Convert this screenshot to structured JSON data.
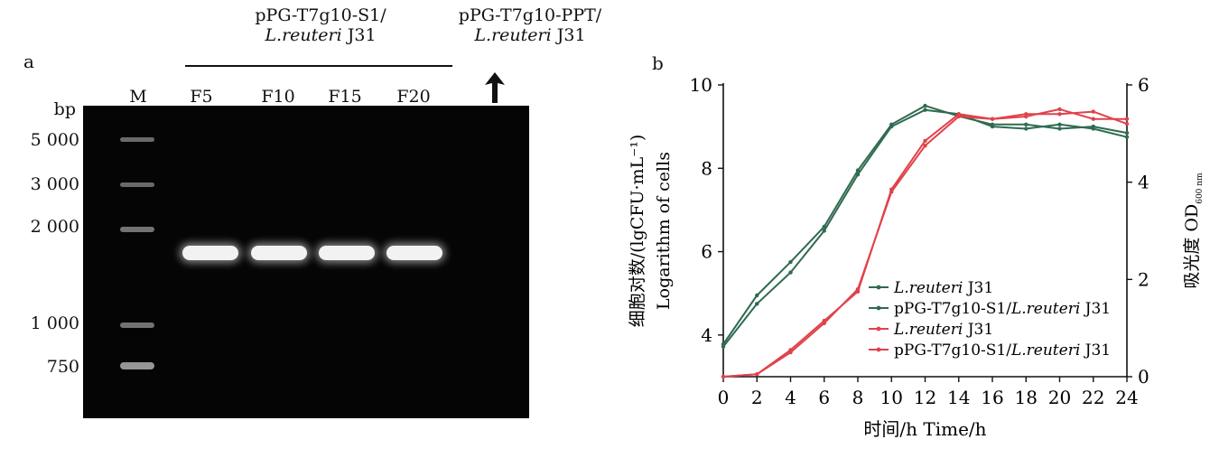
{
  "panel_a": {
    "label": "a",
    "group1": {
      "line1": "pPG-T7g10-S1/",
      "italic": "L.reuteri",
      "strain": " J31"
    },
    "group2": {
      "line1": "pPG-T7g10-PPT/",
      "italic": "L.reuteri",
      "strain": " J31"
    },
    "arrow_icon": "up-arrow",
    "lanes": [
      "M",
      "F5",
      "F10",
      "F15",
      "F20"
    ],
    "bp_label": "bp",
    "markers": [
      "5 000",
      "3 000",
      "2 000",
      "1 000",
      "750"
    ],
    "marker_bp": [
      5000,
      3000,
      2000,
      1000,
      750
    ],
    "sample_band_bp": 1700
  },
  "chart_data": {
    "type": "line",
    "panel_label": "b",
    "xlabel": "时间/h Time/h",
    "ylabel_left": [
      "细胞对数/(lgCFU·mL⁻¹)",
      "Logarithm of cells"
    ],
    "ylabel_right": {
      "main": "吸光度 OD",
      "sub": "600 nm"
    },
    "xlim": [
      0,
      24
    ],
    "ylim_left": [
      3,
      10
    ],
    "ylim_right": [
      0,
      6
    ],
    "xticks": [
      0,
      2,
      4,
      6,
      8,
      10,
      12,
      14,
      16,
      18,
      20,
      22,
      24
    ],
    "yticks_left": [
      4,
      6,
      8,
      10
    ],
    "yticks_right": [
      0,
      2,
      4,
      6
    ],
    "x": [
      0,
      2,
      4,
      6,
      8,
      10,
      12,
      14,
      16,
      18,
      20,
      22,
      24
    ],
    "series": [
      {
        "name": "L.reuteri J31",
        "name_italic": "L.reuteri",
        "name_rest": " J31",
        "axis": "left",
        "color": "#2f6b4f",
        "values": [
          3.78,
          4.95,
          5.75,
          6.6,
          7.95,
          9.05,
          9.5,
          9.25,
          9.05,
          9.05,
          8.95,
          9.0,
          8.85
        ]
      },
      {
        "name": "pPG-T7g10-S1/L.reuteri J31",
        "name_prefix": "pPG-T7g10-S1/",
        "name_italic": "L.reuteri",
        "name_rest": " J31",
        "axis": "left",
        "color": "#2f6b4f",
        "values": [
          3.72,
          4.75,
          5.5,
          6.5,
          7.85,
          9.0,
          9.4,
          9.3,
          9.0,
          8.95,
          9.05,
          8.95,
          8.75
        ]
      },
      {
        "name": "L.reuteri J31",
        "name_italic": "L.reuteri",
        "name_rest": " J31",
        "axis": "right",
        "color": "#e0424b",
        "values": [
          0.0,
          0.05,
          0.55,
          1.15,
          1.75,
          3.85,
          4.85,
          5.4,
          5.3,
          5.35,
          5.5,
          5.3,
          5.3
        ]
      },
      {
        "name": "pPG-T7g10-S1/L.reuteri J31",
        "name_prefix": "pPG-T7g10-S1/",
        "name_italic": "L.reuteri",
        "name_rest": " J31",
        "axis": "right",
        "color": "#e0424b",
        "values": [
          0.0,
          0.05,
          0.5,
          1.1,
          1.8,
          3.8,
          4.75,
          5.35,
          5.3,
          5.4,
          5.4,
          5.45,
          5.2
        ]
      }
    ],
    "legend_position": "lower-right"
  }
}
